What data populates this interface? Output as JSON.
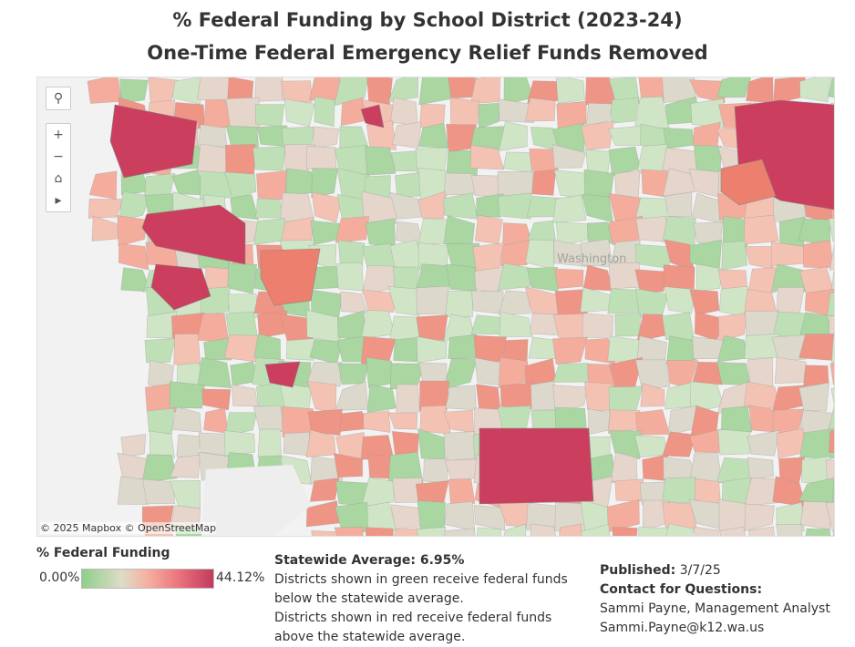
{
  "header": {
    "title": [
      "% Federal Funding by School District (2023-24)",
      "One-Time Federal Emergency Relief Funds Removed"
    ]
  },
  "map": {
    "attribution": "© 2025 Mapbox © OpenStreetMap",
    "watermark": "Washington"
  },
  "legend": {
    "title": "% Federal Funding",
    "min_label": "0.00%",
    "max_label": "44.12%"
  },
  "notes": {
    "heading": "Statewide Average: 6.95%",
    "lines": [
      "Districts shown in green receive federal funds",
      "below the statewide average.",
      "Districts shown in red receive federal funds",
      "above the statewide average."
    ]
  },
  "publication": {
    "published_label": "Published:",
    "published_date": "3/7/25",
    "contact_label": "Contact for Questions:",
    "contact_name": "Sammi Payne, Management Analyst",
    "contact_email": "Sammi.Payne@k12.wa.us"
  }
}
